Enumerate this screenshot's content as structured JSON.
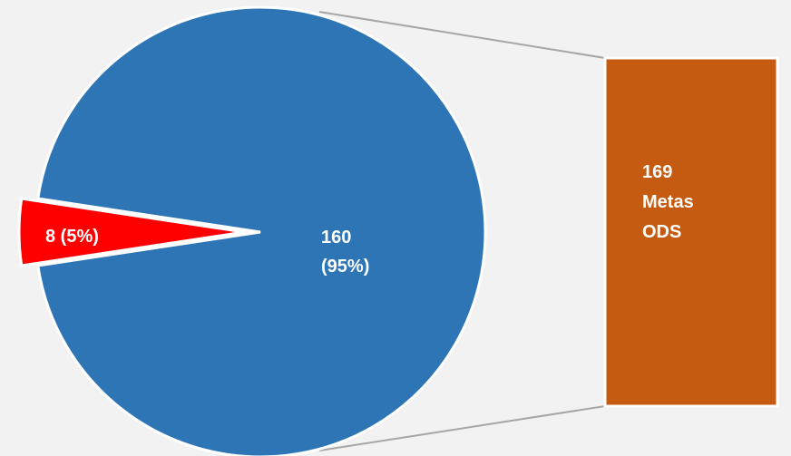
{
  "chart_data": {
    "type": "bar-of-pie",
    "pie": {
      "slices": [
        {
          "label": "160 (95%)",
          "value": 160,
          "percent": 95,
          "color": "#2e75b6"
        },
        {
          "label": "8 (5%)",
          "value": 8,
          "percent": 5,
          "color": "#ff0000",
          "exploded": true
        }
      ]
    },
    "secondary_bar": {
      "label_lines": [
        "169",
        "Metas",
        "ODS"
      ],
      "value": 169,
      "color": "#c55a11"
    },
    "connector_color": "#a6a6a6",
    "background": "#f2f2f2"
  }
}
